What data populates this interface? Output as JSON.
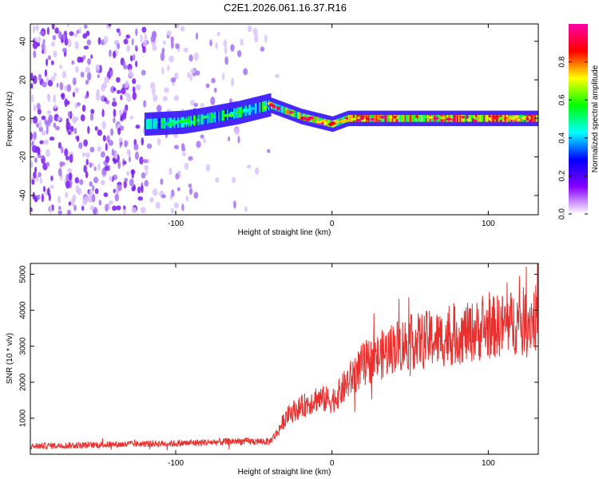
{
  "title": "C2E1.2026.061.16.37.R16",
  "chart_data": [
    {
      "type": "heatmap",
      "name": "spectrogram",
      "xlabel": "Height of straight line (km)",
      "ylabel": "Frequency (Hz)",
      "xlim": [
        -193,
        132
      ],
      "ylim": [
        -50,
        49
      ],
      "xticks": [
        -100,
        0,
        100
      ],
      "xtick_labels": [
        "-100",
        "0",
        "100"
      ],
      "yticks": [
        -40,
        -20,
        0,
        20,
        40
      ],
      "ytick_labels": [
        "-40",
        "-20",
        "0",
        "20",
        "40"
      ],
      "trace": [
        {
          "x": -120,
          "y": -3
        },
        {
          "x": -95,
          "y": -2
        },
        {
          "x": -80,
          "y": 0
        },
        {
          "x": -60,
          "y": 3
        },
        {
          "x": -40,
          "y": 7
        },
        {
          "x": -30,
          "y": 4
        },
        {
          "x": -20,
          "y": 1
        },
        {
          "x": -10,
          "y": -1
        },
        {
          "x": 0,
          "y": -3
        },
        {
          "x": 10,
          "y": 0
        },
        {
          "x": 130,
          "y": 0
        }
      ],
      "colorbar": {
        "label": "Normalized spectral amplitude",
        "range": [
          0,
          1
        ],
        "ticks": [
          0.0,
          0.2,
          0.4,
          0.6,
          0.8
        ],
        "tick_labels": [
          "0.0",
          "0.2",
          "0.4",
          "0.6",
          "0.8"
        ],
        "colormap": [
          "#ffffff",
          "#8800ff",
          "#0000ff",
          "#00ffff",
          "#00ff00",
          "#ffff00",
          "#ff0000",
          "#ff00aa"
        ]
      }
    },
    {
      "type": "line",
      "name": "snr",
      "xlabel": "Height of straight line (km)",
      "ylabel": "SNR (10 * v/v)",
      "xlim": [
        -193,
        132
      ],
      "ylim": [
        0,
        5300
      ],
      "xticks": [
        -100,
        0,
        100
      ],
      "xtick_labels": [
        "-100",
        "0",
        "100"
      ],
      "yticks": [
        1000,
        2000,
        3000,
        4000,
        5000
      ],
      "ytick_labels": [
        "1000",
        "2000",
        "3000",
        "4000",
        "5000"
      ],
      "color": "#e8302e",
      "x": [
        -193,
        -180,
        -160,
        -140,
        -120,
        -100,
        -80,
        -60,
        -40,
        -35,
        -30,
        -25,
        -20,
        -10,
        0,
        5,
        10,
        20,
        30,
        40,
        50,
        60,
        70,
        80,
        90,
        100,
        110,
        120,
        132
      ],
      "y": [
        220,
        240,
        250,
        270,
        290,
        300,
        330,
        360,
        350,
        600,
        1000,
        1200,
        1300,
        1550,
        1500,
        1700,
        2000,
        2500,
        2700,
        3000,
        3100,
        3200,
        3200,
        3300,
        3400,
        3500,
        3600,
        3700,
        3800
      ]
    }
  ]
}
